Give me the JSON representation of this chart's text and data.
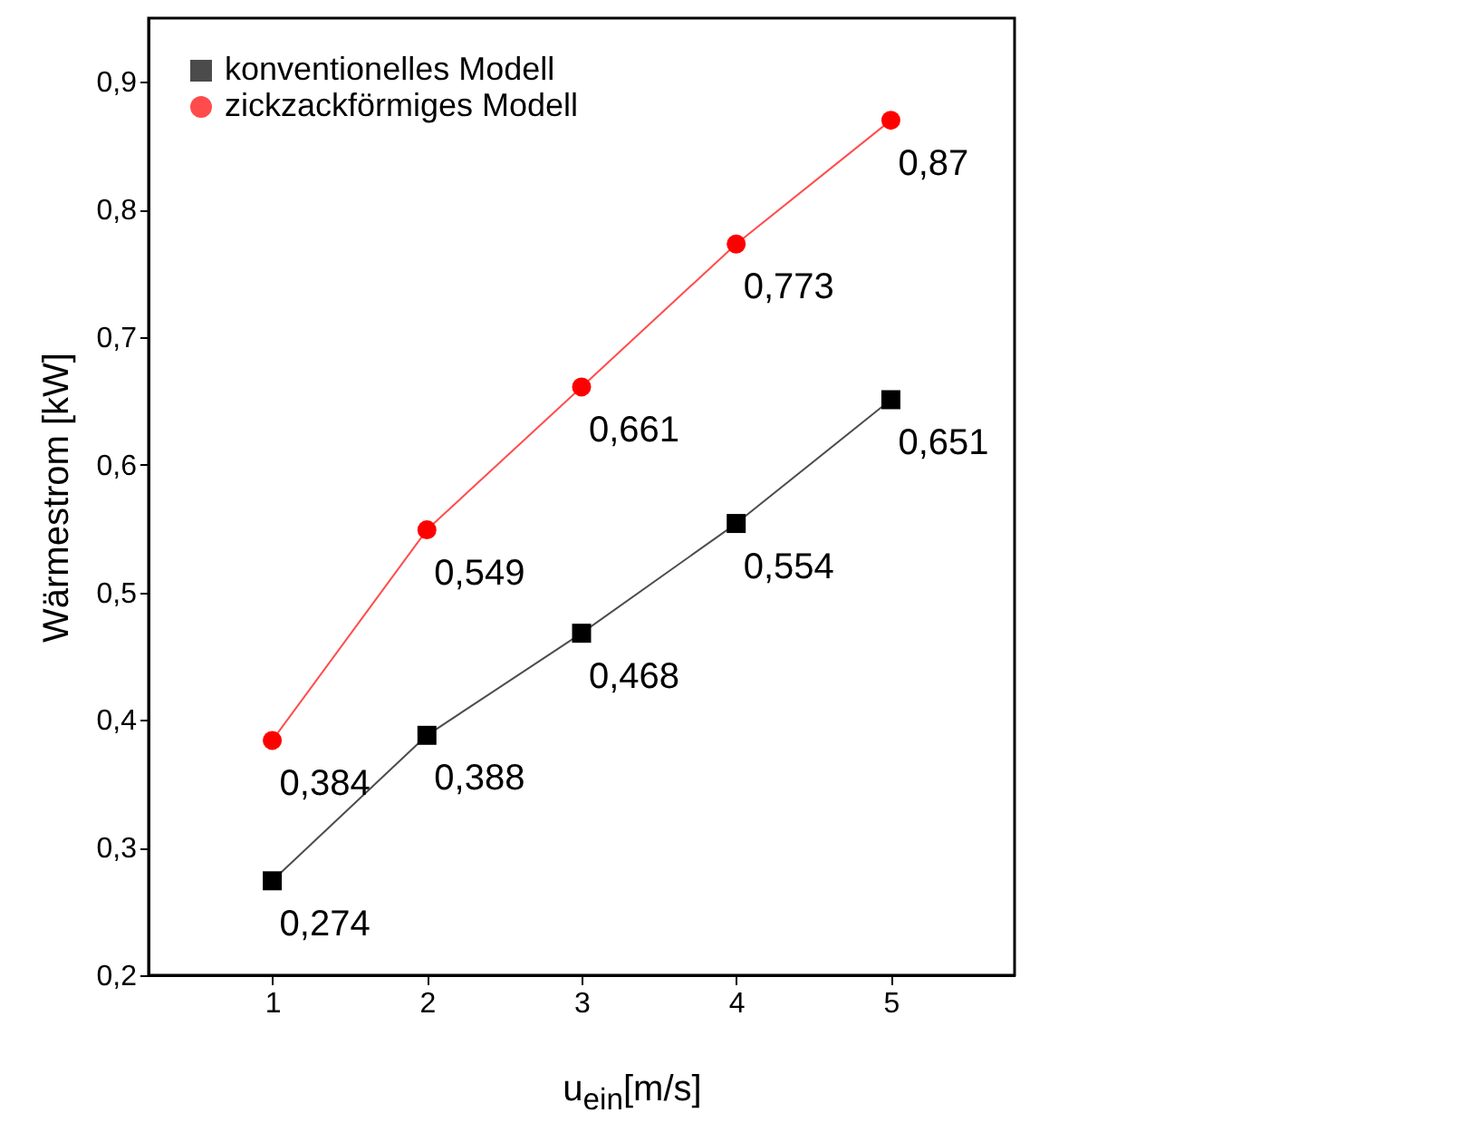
{
  "chart_data": {
    "type": "line",
    "xlabel": "u$_{ein}$[m/s]",
    "ylabel": "Wärmestrom [kW]",
    "x": [
      1,
      2,
      3,
      4,
      5
    ],
    "series": [
      {
        "name": "konventionelles Modell",
        "color": "#000000",
        "marker": "square",
        "values": [
          0.274,
          0.388,
          0.468,
          0.554,
          0.651
        ],
        "value_labels": [
          "0,274",
          "0,388",
          "0,468",
          "0,554",
          "0,651"
        ]
      },
      {
        "name": "zickzackförmiges Modell",
        "color": "#ff0000",
        "marker": "circle",
        "values": [
          0.384,
          0.549,
          0.661,
          0.773,
          0.87
        ],
        "value_labels": [
          "0,384",
          "0,549",
          "0,661",
          "0,773",
          "0,87"
        ]
      }
    ],
    "xlim": [
      0.2,
      5.8
    ],
    "ylim": [
      0.2,
      0.95
    ],
    "xticks": [
      1,
      2,
      3,
      4,
      5
    ],
    "yticks": [
      {
        "value": 0.2,
        "label": "0,2"
      },
      {
        "value": 0.3,
        "label": "0,3"
      },
      {
        "value": 0.4,
        "label": "0,4"
      },
      {
        "value": 0.5,
        "label": "0,5"
      },
      {
        "value": 0.6,
        "label": "0,6"
      },
      {
        "value": 0.7,
        "label": "0,7"
      },
      {
        "value": 0.8,
        "label": "0,8"
      },
      {
        "value": 0.9,
        "label": "0,9"
      }
    ],
    "legend": "top left",
    "grid": false,
    "line_style": "solid"
  }
}
